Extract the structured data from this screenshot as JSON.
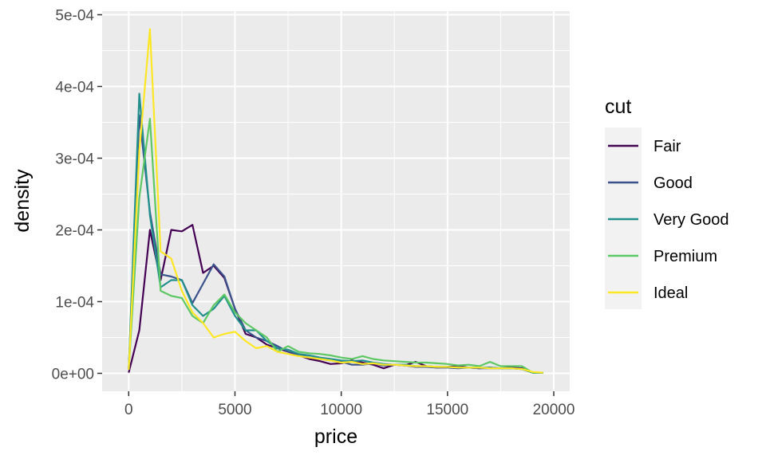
{
  "chart_data": {
    "type": "line",
    "xlabel": "price",
    "ylabel": "density",
    "xlim": [
      -1250,
      20750
    ],
    "ylim": [
      -2.5e-05,
      0.000505
    ],
    "x_ticks": [
      0,
      5000,
      10000,
      15000,
      20000
    ],
    "x_tick_labels": [
      "0",
      "5000",
      "10000",
      "15000",
      "20000"
    ],
    "y_ticks": [
      0,
      0.0001,
      0.0002,
      0.0003,
      0.0004,
      0.0005
    ],
    "y_tick_labels": [
      "0e+00",
      "1e-04",
      "2e-04",
      "3e-04",
      "4e-04",
      "5e-04"
    ],
    "grid": true,
    "legend": {
      "title": "cut",
      "position": "right"
    },
    "series": [
      {
        "name": "Fair",
        "color": "#440154",
        "points": [
          [
            0,
            1e-06
          ],
          [
            500,
            6e-05
          ],
          [
            1000,
            0.0002
          ],
          [
            1500,
            0.00013
          ],
          [
            2000,
            0.0002
          ],
          [
            2500,
            0.000198
          ],
          [
            3000,
            0.000207
          ],
          [
            3500,
            0.00014
          ],
          [
            4000,
            0.00015
          ],
          [
            4500,
            0.000133
          ],
          [
            5000,
            9e-05
          ],
          [
            5500,
            5.5e-05
          ],
          [
            6000,
            5e-05
          ],
          [
            6500,
            4e-05
          ],
          [
            7000,
            3.5e-05
          ],
          [
            7500,
            3e-05
          ],
          [
            8000,
            2.5e-05
          ],
          [
            8500,
            2e-05
          ],
          [
            9000,
            1.7e-05
          ],
          [
            9500,
            1.3e-05
          ],
          [
            10000,
            1.4e-05
          ],
          [
            10500,
            1.8e-05
          ],
          [
            11000,
            1.5e-05
          ],
          [
            11500,
            1.2e-05
          ],
          [
            12000,
            7e-06
          ],
          [
            12500,
            1.2e-05
          ],
          [
            13000,
            1.1e-05
          ],
          [
            13500,
            1.6e-05
          ],
          [
            14000,
            1e-05
          ],
          [
            14500,
            8e-06
          ],
          [
            15000,
            9e-06
          ],
          [
            15500,
            1e-05
          ],
          [
            16000,
            8e-06
          ],
          [
            16500,
            7e-06
          ],
          [
            17000,
            8e-06
          ],
          [
            17500,
            7e-06
          ],
          [
            18000,
            8e-06
          ],
          [
            18500,
            7e-06
          ],
          [
            19000,
            1e-06
          ],
          [
            19500,
            1e-06
          ]
        ]
      },
      {
        "name": "Good",
        "color": "#3b528b",
        "points": [
          [
            0,
            5e-06
          ],
          [
            500,
            0.00036
          ],
          [
            1000,
            0.000225
          ],
          [
            1500,
            0.000138
          ],
          [
            2000,
            0.000135
          ],
          [
            2500,
            0.00013
          ],
          [
            3000,
            9.8e-05
          ],
          [
            3500,
            0.000125
          ],
          [
            4000,
            0.000152
          ],
          [
            4500,
            0.000135
          ],
          [
            5000,
            9e-05
          ],
          [
            5500,
            6e-05
          ],
          [
            6000,
            5e-05
          ],
          [
            6500,
            4.5e-05
          ],
          [
            7000,
            3.8e-05
          ],
          [
            7500,
            3e-05
          ],
          [
            8000,
            2.6e-05
          ],
          [
            8500,
            2.2e-05
          ],
          [
            9000,
            2e-05
          ],
          [
            9500,
            1.8e-05
          ],
          [
            10000,
            1.6e-05
          ],
          [
            10500,
            1.2e-05
          ],
          [
            11000,
            1.2e-05
          ],
          [
            11500,
            1.4e-05
          ],
          [
            12000,
            1.1e-05
          ],
          [
            12500,
            1.2e-05
          ],
          [
            13000,
            1.1e-05
          ],
          [
            13500,
            9e-06
          ],
          [
            14000,
            9e-06
          ],
          [
            14500,
            8e-06
          ],
          [
            15000,
            8e-06
          ],
          [
            15500,
            7e-06
          ],
          [
            16000,
            8e-06
          ],
          [
            16500,
            7e-06
          ],
          [
            17000,
            7e-06
          ],
          [
            17500,
            7e-06
          ],
          [
            18000,
            7e-06
          ],
          [
            18500,
            6e-06
          ],
          [
            19000,
            1e-06
          ],
          [
            19500,
            1e-06
          ]
        ]
      },
      {
        "name": "Very Good",
        "color": "#21908c",
        "points": [
          [
            0,
            5e-06
          ],
          [
            500,
            0.00039
          ],
          [
            1000,
            0.00022
          ],
          [
            1500,
            0.00012
          ],
          [
            2000,
            0.00013
          ],
          [
            2500,
            0.00013
          ],
          [
            3000,
            9.5e-05
          ],
          [
            3500,
            8e-05
          ],
          [
            4000,
            9e-05
          ],
          [
            4500,
            0.000108
          ],
          [
            5000,
            8e-05
          ],
          [
            5500,
            6e-05
          ],
          [
            6000,
            6e-05
          ],
          [
            6500,
            4.5e-05
          ],
          [
            7000,
            3.5e-05
          ],
          [
            7500,
            3.3e-05
          ],
          [
            8000,
            2.7e-05
          ],
          [
            8500,
            2.5e-05
          ],
          [
            9000,
            2.2e-05
          ],
          [
            9500,
            2e-05
          ],
          [
            10000,
            1.8e-05
          ],
          [
            10500,
            1.7e-05
          ],
          [
            11000,
            1.8e-05
          ],
          [
            11500,
            1.5e-05
          ],
          [
            12000,
            1.3e-05
          ],
          [
            12500,
            1.2e-05
          ],
          [
            13000,
            1.2e-05
          ],
          [
            13500,
            1e-05
          ],
          [
            14000,
            1e-05
          ],
          [
            14500,
            9e-06
          ],
          [
            15000,
            9e-06
          ],
          [
            15500,
            8e-06
          ],
          [
            16000,
            8e-06
          ],
          [
            16500,
            8e-06
          ],
          [
            17000,
            8e-06
          ],
          [
            17500,
            7e-06
          ],
          [
            18000,
            7e-06
          ],
          [
            18500,
            6e-06
          ],
          [
            19000,
            1e-06
          ],
          [
            19500,
            1e-06
          ]
        ]
      },
      {
        "name": "Premium",
        "color": "#5dc863",
        "points": [
          [
            0,
            5e-06
          ],
          [
            500,
            0.000245
          ],
          [
            1000,
            0.000355
          ],
          [
            1500,
            0.000115
          ],
          [
            2000,
            0.000108
          ],
          [
            2500,
            0.000105
          ],
          [
            3000,
            8e-05
          ],
          [
            3500,
            7e-05
          ],
          [
            4000,
            9.5e-05
          ],
          [
            4500,
            0.00011
          ],
          [
            5000,
            8.5e-05
          ],
          [
            5500,
            7e-05
          ],
          [
            6000,
            6e-05
          ],
          [
            6500,
            5e-05
          ],
          [
            7000,
            3e-05
          ],
          [
            7500,
            3.8e-05
          ],
          [
            8000,
            3e-05
          ],
          [
            8500,
            2.8e-05
          ],
          [
            9000,
            2.7e-05
          ],
          [
            9500,
            2.5e-05
          ],
          [
            10000,
            2.2e-05
          ],
          [
            10500,
            2e-05
          ],
          [
            11000,
            2.4e-05
          ],
          [
            11500,
            2e-05
          ],
          [
            12000,
            1.8e-05
          ],
          [
            12500,
            1.7e-05
          ],
          [
            13000,
            1.6e-05
          ],
          [
            13500,
            1.5e-05
          ],
          [
            14000,
            1.5e-05
          ],
          [
            14500,
            1.4e-05
          ],
          [
            15000,
            1.3e-05
          ],
          [
            15500,
            1.1e-05
          ],
          [
            16000,
            1.2e-05
          ],
          [
            16500,
            1e-05
          ],
          [
            17000,
            1.6e-05
          ],
          [
            17500,
            1e-05
          ],
          [
            18000,
            1e-05
          ],
          [
            18500,
            1e-05
          ],
          [
            19000,
            1e-06
          ],
          [
            19500,
            1e-06
          ]
        ]
      },
      {
        "name": "Ideal",
        "color": "#fde725",
        "points": [
          [
            0,
            5e-06
          ],
          [
            500,
            0.00031
          ],
          [
            1000,
            0.00048
          ],
          [
            1500,
            0.00017
          ],
          [
            2000,
            0.00016
          ],
          [
            2500,
            0.000115
          ],
          [
            3000,
            8.5e-05
          ],
          [
            3500,
            7e-05
          ],
          [
            4000,
            5e-05
          ],
          [
            4500,
            5.5e-05
          ],
          [
            5000,
            5.8e-05
          ],
          [
            5500,
            4.5e-05
          ],
          [
            6000,
            3.5e-05
          ],
          [
            6500,
            3.8e-05
          ],
          [
            7000,
            3e-05
          ],
          [
            7500,
            2.7e-05
          ],
          [
            8000,
            2.4e-05
          ],
          [
            8500,
            2.2e-05
          ],
          [
            9000,
            2e-05
          ],
          [
            9500,
            1.8e-05
          ],
          [
            10000,
            1.5e-05
          ],
          [
            10500,
            1.6e-05
          ],
          [
            11000,
            1.3e-05
          ],
          [
            11500,
            1.4e-05
          ],
          [
            12000,
            1.2e-05
          ],
          [
            12500,
            1.2e-05
          ],
          [
            13000,
            1.1e-05
          ],
          [
            13500,
            1e-05
          ],
          [
            14000,
            1e-05
          ],
          [
            14500,
            9e-06
          ],
          [
            15000,
            9e-06
          ],
          [
            15500,
            8e-06
          ],
          [
            16000,
            8e-06
          ],
          [
            16500,
            8e-06
          ],
          [
            17000,
            7e-06
          ],
          [
            17500,
            7e-06
          ],
          [
            18000,
            7e-06
          ],
          [
            18500,
            6e-06
          ],
          [
            19000,
            2e-06
          ],
          [
            19500,
            1e-06
          ]
        ]
      }
    ]
  }
}
